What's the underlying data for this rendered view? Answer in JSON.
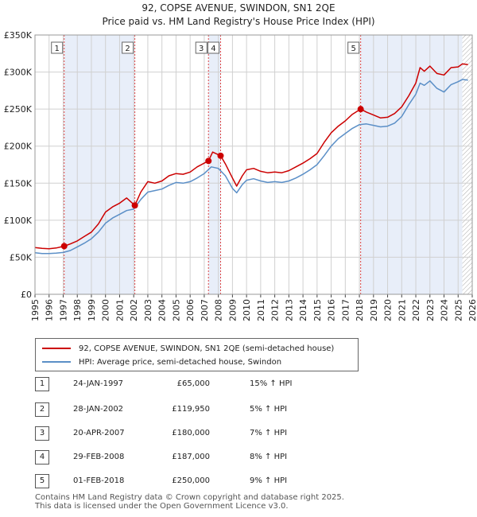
{
  "title": "92, COPSE AVENUE, SWINDON, SN1 2QE",
  "subtitle": "Price paid vs. HM Land Registry's House Price Index (HPI)",
  "colors": {
    "property": "#cc0000",
    "hpi": "#5b8fc7",
    "shade": "#e8eef9",
    "grid": "#d0d0d0",
    "marker_line": "#dd4444"
  },
  "chart_data": {
    "type": "line",
    "title": "Price paid vs. HM Land Registry's House Price Index (HPI)",
    "xlabel": "",
    "ylabel": "",
    "xlim": [
      1995,
      2026
    ],
    "ylim": [
      0,
      350000
    ],
    "y_ticks": [
      {
        "value": 0,
        "label": "£0"
      },
      {
        "value": 50000,
        "label": "£50K"
      },
      {
        "value": 100000,
        "label": "£100K"
      },
      {
        "value": 150000,
        "label": "£150K"
      },
      {
        "value": 200000,
        "label": "£200K"
      },
      {
        "value": 250000,
        "label": "£250K"
      },
      {
        "value": 300000,
        "label": "£300K"
      },
      {
        "value": 350000,
        "label": "£350K"
      }
    ],
    "x_ticks": [
      "1995",
      "1996",
      "1997",
      "1998",
      "1999",
      "2000",
      "2001",
      "2002",
      "2003",
      "2004",
      "2005",
      "2006",
      "2007",
      "2008",
      "2009",
      "2010",
      "2011",
      "2012",
      "2013",
      "2014",
      "2015",
      "2016",
      "2017",
      "2018",
      "2019",
      "2020",
      "2021",
      "2022",
      "2023",
      "2024",
      "2025",
      "2026"
    ],
    "grid": true,
    "shaded_ranges": [
      [
        1997.07,
        2002.08
      ],
      [
        2007.3,
        2008.16
      ],
      [
        2018.09,
        2025.3
      ]
    ],
    "hatched_from": 2025.3,
    "series": [
      {
        "name": "92, COPSE AVENUE, SWINDON, SN1 2QE (semi-detached house)",
        "color": "#cc0000",
        "x": [
          1995.0,
          1995.5,
          1996.0,
          1996.5,
          1997.07,
          1997.5,
          1998.0,
          1998.5,
          1999.0,
          1999.5,
          2000.0,
          2000.5,
          2001.0,
          2001.5,
          2002.08,
          2002.5,
          2003.0,
          2003.5,
          2004.0,
          2004.5,
          2005.0,
          2005.5,
          2006.0,
          2006.5,
          2007.3,
          2007.6,
          2008.16,
          2008.5,
          2009.0,
          2009.3,
          2009.7,
          2010.0,
          2010.5,
          2011.0,
          2011.5,
          2012.0,
          2012.5,
          2013.0,
          2013.5,
          2014.0,
          2014.5,
          2015.0,
          2015.5,
          2016.0,
          2016.5,
          2017.0,
          2017.5,
          2018.09,
          2018.5,
          2019.0,
          2019.5,
          2020.0,
          2020.5,
          2021.0,
          2021.5,
          2022.0,
          2022.3,
          2022.6,
          2023.0,
          2023.5,
          2024.0,
          2024.5,
          2025.0,
          2025.3,
          2025.7
        ],
        "y": [
          63000,
          62000,
          61500,
          62500,
          65000,
          68000,
          72000,
          78000,
          84000,
          95000,
          111000,
          118000,
          123000,
          130000,
          119950,
          138000,
          152000,
          150000,
          153000,
          160000,
          163000,
          162000,
          165000,
          172000,
          180000,
          192000,
          187000,
          176000,
          157000,
          146000,
          160000,
          168000,
          170000,
          166000,
          164000,
          165000,
          164000,
          167000,
          172000,
          177000,
          183000,
          190000,
          205000,
          218000,
          227000,
          234000,
          243000,
          250000,
          246000,
          242000,
          238000,
          239000,
          244000,
          253000,
          268000,
          285000,
          306000,
          301000,
          308000,
          298000,
          296000,
          306000,
          307000,
          311000,
          310000
        ]
      },
      {
        "name": "HPI: Average price, semi-detached house, Swindon",
        "color": "#5b8fc7",
        "x": [
          1995.0,
          1995.5,
          1996.0,
          1996.5,
          1997.0,
          1997.5,
          1998.0,
          1998.5,
          1999.0,
          1999.5,
          2000.0,
          2000.5,
          2001.0,
          2001.5,
          2002.0,
          2002.5,
          2003.0,
          2003.5,
          2004.0,
          2004.5,
          2005.0,
          2005.5,
          2006.0,
          2006.5,
          2007.0,
          2007.5,
          2008.0,
          2008.5,
          2009.0,
          2009.3,
          2009.7,
          2010.0,
          2010.5,
          2011.0,
          2011.5,
          2012.0,
          2012.5,
          2013.0,
          2013.5,
          2014.0,
          2014.5,
          2015.0,
          2015.5,
          2016.0,
          2016.5,
          2017.0,
          2017.5,
          2018.0,
          2018.5,
          2019.0,
          2019.5,
          2020.0,
          2020.5,
          2021.0,
          2021.5,
          2022.0,
          2022.3,
          2022.6,
          2023.0,
          2023.5,
          2024.0,
          2024.5,
          2025.0,
          2025.3,
          2025.7
        ],
        "y": [
          56000,
          55000,
          55000,
          55500,
          56500,
          59000,
          64000,
          69000,
          75000,
          84000,
          96000,
          103000,
          108000,
          113000,
          115000,
          128000,
          138000,
          140000,
          142000,
          147000,
          151000,
          150000,
          152000,
          157000,
          163000,
          172000,
          170000,
          160000,
          143000,
          137000,
          148000,
          154000,
          156000,
          153000,
          151000,
          152000,
          151000,
          153000,
          157000,
          162000,
          168000,
          175000,
          187000,
          200000,
          210000,
          217000,
          224000,
          229000,
          230000,
          228000,
          226000,
          227000,
          231000,
          240000,
          256000,
          270000,
          285000,
          282000,
          288000,
          278000,
          273000,
          283000,
          287000,
          290000,
          289000
        ]
      }
    ],
    "transactions": [
      {
        "num": "1",
        "date": "24-JAN-1997",
        "price": "£65,000",
        "hpi_change": "15% ↑ HPI",
        "x": 1997.07,
        "y": 65000
      },
      {
        "num": "2",
        "date": "28-JAN-2002",
        "price": "£119,950",
        "hpi_change": "5% ↑ HPI",
        "x": 2002.08,
        "y": 119950
      },
      {
        "num": "3",
        "date": "20-APR-2007",
        "price": "£180,000",
        "hpi_change": "7% ↑ HPI",
        "x": 2007.3,
        "y": 180000
      },
      {
        "num": "4",
        "date": "29-FEB-2008",
        "price": "£187,000",
        "hpi_change": "8% ↑ HPI",
        "x": 2008.16,
        "y": 187000
      },
      {
        "num": "5",
        "date": "01-FEB-2018",
        "price": "£250,000",
        "hpi_change": "9% ↑ HPI",
        "x": 2018.09,
        "y": 250000
      }
    ]
  },
  "legend": {
    "property_label": "92, COPSE AVENUE, SWINDON, SN1 2QE (semi-detached house)",
    "hpi_label": "HPI: Average price, semi-detached house, Swindon"
  },
  "footer": {
    "line1": "Contains HM Land Registry data © Crown copyright and database right 2025.",
    "line2": "This data is licensed under the Open Government Licence v3.0."
  }
}
